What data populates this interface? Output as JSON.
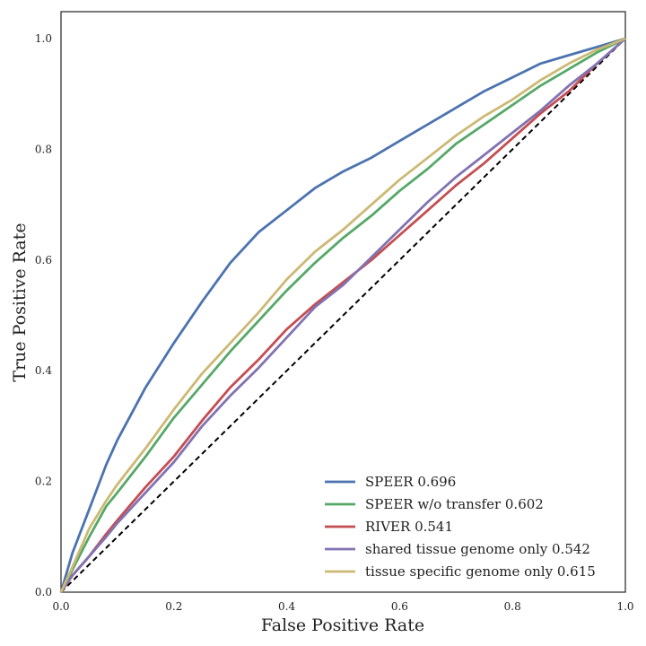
{
  "chart_data": {
    "type": "line",
    "title": "",
    "xlabel": "False Positive Rate",
    "ylabel": "True Positive Rate",
    "xlim": [
      0.0,
      1.0
    ],
    "ylim": [
      0.0,
      1.0
    ],
    "xticks": [
      "0.0",
      "0.2",
      "0.4",
      "0.6",
      "0.8",
      "1.0"
    ],
    "yticks": [
      "0.0",
      "0.2",
      "0.4",
      "0.6",
      "0.8",
      "1.0"
    ],
    "grid": false,
    "legend_position": "bottom-right",
    "x": [
      0.0,
      0.02,
      0.05,
      0.08,
      0.1,
      0.15,
      0.2,
      0.25,
      0.3,
      0.35,
      0.4,
      0.45,
      0.5,
      0.55,
      0.6,
      0.65,
      0.7,
      0.75,
      0.8,
      0.85,
      0.9,
      0.95,
      1.0
    ],
    "series": [
      {
        "name": "SPEER 0.696",
        "color": "#4c72b0",
        "values": [
          0.0,
          0.07,
          0.15,
          0.23,
          0.275,
          0.37,
          0.45,
          0.525,
          0.595,
          0.65,
          0.69,
          0.73,
          0.76,
          0.785,
          0.815,
          0.845,
          0.875,
          0.905,
          0.93,
          0.955,
          0.97,
          0.985,
          1.0
        ]
      },
      {
        "name": "SPEER w/o transfer 0.602",
        "color": "#55a868",
        "values": [
          0.0,
          0.04,
          0.1,
          0.155,
          0.18,
          0.245,
          0.315,
          0.375,
          0.435,
          0.49,
          0.545,
          0.595,
          0.64,
          0.68,
          0.725,
          0.765,
          0.81,
          0.845,
          0.88,
          0.915,
          0.945,
          0.975,
          1.0
        ]
      },
      {
        "name": "RIVER 0.541",
        "color": "#c44e52",
        "values": [
          0.0,
          0.03,
          0.065,
          0.105,
          0.13,
          0.19,
          0.245,
          0.31,
          0.37,
          0.42,
          0.475,
          0.52,
          0.56,
          0.6,
          0.645,
          0.69,
          0.735,
          0.775,
          0.82,
          0.865,
          0.905,
          0.955,
          1.0
        ]
      },
      {
        "name": "shared tissue genome only 0.542",
        "color": "#8172b2",
        "values": [
          0.0,
          0.03,
          0.065,
          0.1,
          0.125,
          0.18,
          0.235,
          0.3,
          0.355,
          0.405,
          0.46,
          0.515,
          0.555,
          0.605,
          0.655,
          0.705,
          0.75,
          0.79,
          0.83,
          0.87,
          0.915,
          0.955,
          1.0
        ]
      },
      {
        "name": "tissue specific genome only 0.615",
        "color": "#ccb974",
        "values": [
          0.0,
          0.045,
          0.115,
          0.165,
          0.195,
          0.26,
          0.33,
          0.395,
          0.45,
          0.505,
          0.565,
          0.615,
          0.655,
          0.7,
          0.745,
          0.785,
          0.825,
          0.86,
          0.89,
          0.925,
          0.955,
          0.98,
          1.0
        ]
      }
    ],
    "reference_line": {
      "from": [
        0,
        0
      ],
      "to": [
        1,
        1
      ],
      "style": "dashed",
      "color": "#000000"
    }
  }
}
